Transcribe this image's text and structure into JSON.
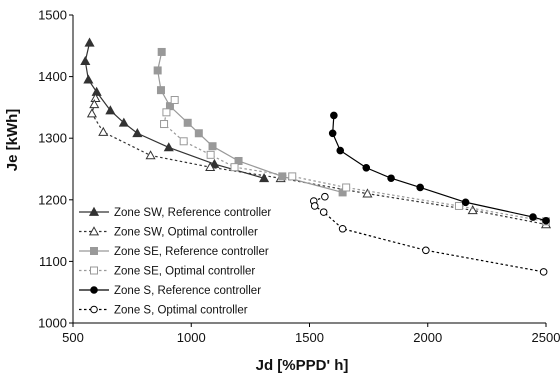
{
  "chart_data": {
    "type": "line",
    "title": "",
    "xlabel": "Jd [%PPD' h]",
    "ylabel": "Je [kWh]",
    "xlim": [
      500,
      2500
    ],
    "ylim": [
      1000,
      1500
    ],
    "xticks": [
      500,
      1000,
      1500,
      2000,
      2500
    ],
    "yticks": [
      1000,
      1100,
      1200,
      1300,
      1400,
      1500
    ],
    "grid": false,
    "legend": "bottom-left",
    "series": [
      {
        "name": "Zone SW, Reference controller",
        "color": "#333333",
        "line": "solid",
        "marker": "triangle",
        "filled": true,
        "points": [
          [
            570,
            1455
          ],
          [
            552,
            1425
          ],
          [
            565,
            1395
          ],
          [
            600,
            1375
          ],
          [
            658,
            1345
          ],
          [
            715,
            1325
          ],
          [
            772,
            1308
          ],
          [
            905,
            1285
          ],
          [
            1098,
            1258
          ],
          [
            1308,
            1235
          ]
        ]
      },
      {
        "name": "Zone SW, Optimal controller",
        "color": "#333333",
        "line": "dotted",
        "marker": "triangle",
        "filled": false,
        "points": [
          [
            595,
            1365
          ],
          [
            590,
            1355
          ],
          [
            580,
            1340
          ],
          [
            628,
            1310
          ],
          [
            828,
            1272
          ],
          [
            1080,
            1253
          ],
          [
            1378,
            1235
          ],
          [
            1745,
            1210
          ],
          [
            2190,
            1183
          ],
          [
            2500,
            1160
          ]
        ]
      },
      {
        "name": "Zone SE, Reference controller",
        "color": "#999999",
        "line": "solid",
        "marker": "square",
        "filled": true,
        "points": [
          [
            875,
            1440
          ],
          [
            858,
            1410
          ],
          [
            872,
            1378
          ],
          [
            910,
            1352
          ],
          [
            985,
            1325
          ],
          [
            1032,
            1308
          ],
          [
            1090,
            1287
          ],
          [
            1200,
            1263
          ],
          [
            1385,
            1238
          ],
          [
            1640,
            1212
          ]
        ]
      },
      {
        "name": "Zone SE, Optimal controller",
        "color": "#999999",
        "line": "dotted",
        "marker": "square",
        "filled": false,
        "points": [
          [
            930,
            1362
          ],
          [
            895,
            1342
          ],
          [
            885,
            1323
          ],
          [
            968,
            1295
          ],
          [
            1082,
            1273
          ],
          [
            1183,
            1253
          ],
          [
            1427,
            1238
          ],
          [
            1655,
            1220
          ],
          [
            2132,
            1190
          ],
          [
            2500,
            1165
          ]
        ]
      },
      {
        "name": "Zone S, Reference controller",
        "color": "#000000",
        "line": "solid",
        "marker": "circle",
        "filled": true,
        "points": [
          [
            1603,
            1337
          ],
          [
            1598,
            1308
          ],
          [
            1630,
            1280
          ],
          [
            1740,
            1252
          ],
          [
            1845,
            1235
          ],
          [
            1968,
            1220
          ],
          [
            2160,
            1196
          ],
          [
            2445,
            1172
          ],
          [
            2500,
            1166
          ]
        ]
      },
      {
        "name": "Zone S, Optimal controller",
        "color": "#000000",
        "line": "dotted",
        "marker": "circle",
        "filled": false,
        "points": [
          [
            1565,
            1205
          ],
          [
            1518,
            1198
          ],
          [
            1522,
            1190
          ],
          [
            1560,
            1180
          ],
          [
            1640,
            1153
          ],
          [
            1992,
            1118
          ],
          [
            2490,
            1083
          ]
        ]
      }
    ]
  }
}
